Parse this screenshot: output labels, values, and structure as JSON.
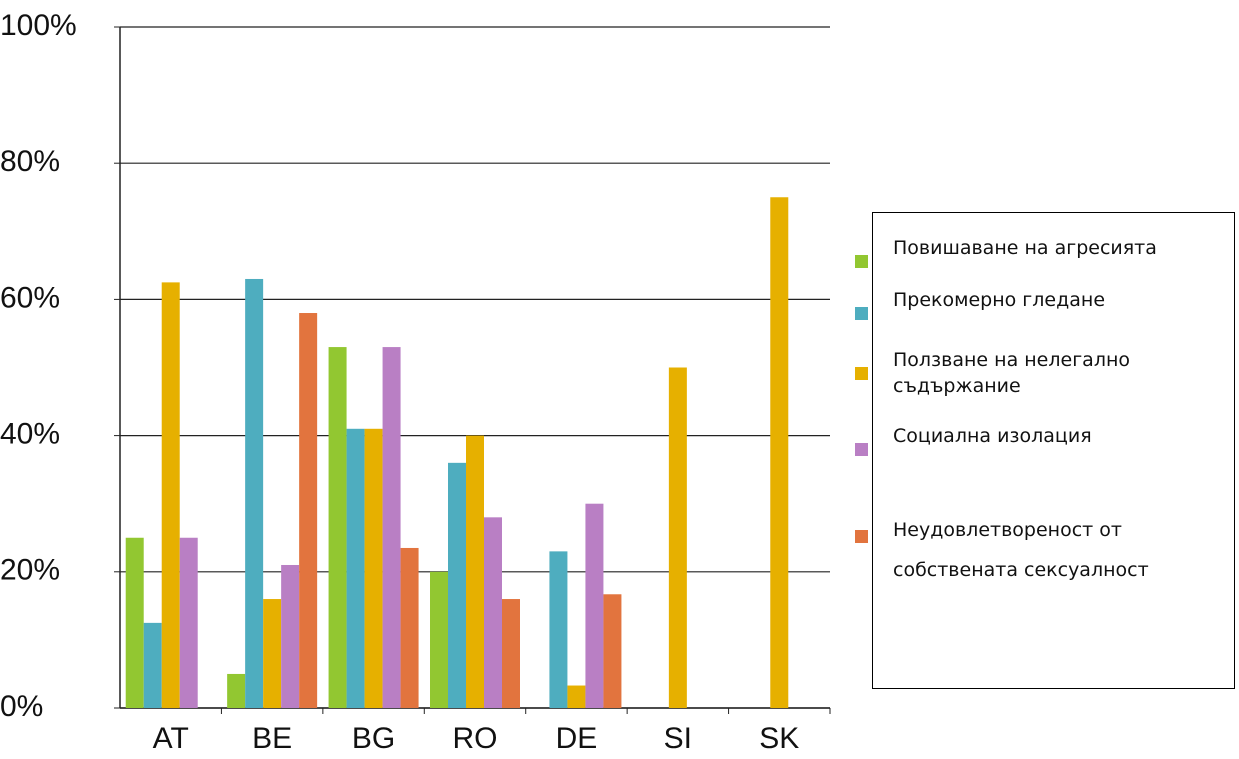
{
  "chart_data": {
    "type": "bar",
    "categories": [
      "AT",
      "BE",
      "BG",
      "RO",
      "DE",
      "SI",
      "SK"
    ],
    "series": [
      {
        "name": "Повишаване на агресията",
        "color": "#92c731",
        "values": [
          25,
          5,
          53,
          20,
          0,
          0,
          0
        ]
      },
      {
        "name": "Прекомерно гледане",
        "color": "#4eadbf",
        "values": [
          12.5,
          63,
          41,
          36,
          23,
          0,
          0
        ]
      },
      {
        "name": "Ползване на нелегално съдържание",
        "color": "#e6b000",
        "values": [
          62.5,
          16,
          41,
          40,
          3.3,
          50,
          75
        ]
      },
      {
        "name": "Социална изолация",
        "color": "#b97fc4",
        "values": [
          25,
          21,
          53,
          28,
          30,
          0,
          0
        ]
      },
      {
        "name": "Неудовлетвореност от собствената сексуалност",
        "color": "#e2743e",
        "values": [
          0,
          58,
          23.5,
          16,
          16.7,
          0,
          0
        ]
      }
    ],
    "ylim": [
      0,
      100
    ],
    "yticks": [
      {
        "value": 0,
        "label": "0%"
      },
      {
        "value": 20,
        "label": "20%"
      },
      {
        "value": 40,
        "label": "40%"
      },
      {
        "value": 60,
        "label": "60%"
      },
      {
        "value": 80,
        "label": "80%"
      },
      {
        "value": 100,
        "label": "100%"
      }
    ],
    "grid": true
  }
}
